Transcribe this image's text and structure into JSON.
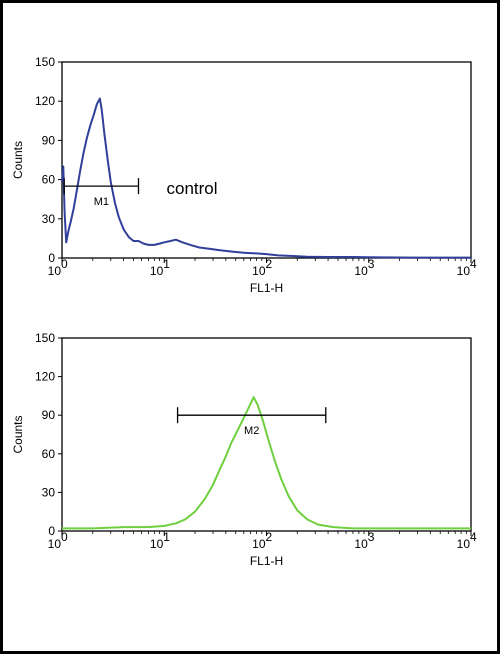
{
  "chart_data": [
    {
      "type": "line",
      "xscale": "log",
      "xlim": [
        1,
        10000
      ],
      "ylim": [
        0,
        150
      ],
      "xlabel": "FL1-H",
      "ylabel": "Counts",
      "x_ticks": [
        {
          "value": 1,
          "base": "10",
          "exp": "0"
        },
        {
          "value": 10,
          "base": "10",
          "exp": "1"
        },
        {
          "value": 100,
          "base": "10",
          "exp": "2"
        },
        {
          "value": 1000,
          "base": "10",
          "exp": "3"
        },
        {
          "value": 10000,
          "base": "10",
          "exp": "4"
        }
      ],
      "y_ticks": [
        0,
        30,
        60,
        90,
        120,
        150
      ],
      "annotation": "control",
      "gate": {
        "label": "M1",
        "x_start": 1.05,
        "x_end": 5.6,
        "y": 55
      },
      "series": [
        {
          "color": "#2f3f9a",
          "points": [
            [
              1.0,
              58
            ],
            [
              1.03,
              70
            ],
            [
              1.06,
              35
            ],
            [
              1.1,
              12
            ],
            [
              1.15,
              20
            ],
            [
              1.22,
              28
            ],
            [
              1.3,
              38
            ],
            [
              1.4,
              52
            ],
            [
              1.5,
              66
            ],
            [
              1.62,
              80
            ],
            [
              1.75,
              92
            ],
            [
              1.9,
              102
            ],
            [
              2.05,
              110
            ],
            [
              2.2,
              118
            ],
            [
              2.35,
              122
            ],
            [
              2.45,
              113
            ],
            [
              2.6,
              95
            ],
            [
              2.8,
              75
            ],
            [
              3.0,
              58
            ],
            [
              3.3,
              42
            ],
            [
              3.6,
              31
            ],
            [
              4.0,
              22
            ],
            [
              4.5,
              16
            ],
            [
              5.0,
              13
            ],
            [
              5.6,
              13
            ],
            [
              6.3,
              11
            ],
            [
              7.0,
              10
            ],
            [
              8.0,
              10
            ],
            [
              9.0,
              11
            ],
            [
              10.0,
              12
            ],
            [
              11.5,
              13
            ],
            [
              13.0,
              14
            ],
            [
              15.0,
              12
            ],
            [
              18.0,
              10
            ],
            [
              22.0,
              8
            ],
            [
              28.0,
              7
            ],
            [
              35.0,
              6
            ],
            [
              45.0,
              5
            ],
            [
              60.0,
              4
            ],
            [
              80.0,
              3.5
            ],
            [
              100.0,
              3
            ],
            [
              130.0,
              2
            ],
            [
              180.0,
              1.5
            ],
            [
              250.0,
              1
            ],
            [
              400.0,
              0.8
            ],
            [
              700.0,
              0.8
            ],
            [
              1000.0,
              0.5
            ],
            [
              3000.0,
              0.3
            ],
            [
              10000.0,
              0.3
            ]
          ]
        }
      ]
    },
    {
      "type": "line",
      "xscale": "log",
      "xlim": [
        1,
        10000
      ],
      "ylim": [
        0,
        150
      ],
      "xlabel": "FL1-H",
      "ylabel": "Counts",
      "x_ticks": [
        {
          "value": 1,
          "base": "10",
          "exp": "0"
        },
        {
          "value": 10,
          "base": "10",
          "exp": "1"
        },
        {
          "value": 100,
          "base": "10",
          "exp": "2"
        },
        {
          "value": 1000,
          "base": "10",
          "exp": "3"
        },
        {
          "value": 10000,
          "base": "10",
          "exp": "4"
        }
      ],
      "y_ticks": [
        0,
        30,
        60,
        90,
        120,
        150
      ],
      "gate": {
        "label": "M2",
        "x_start": 13.5,
        "x_end": 380,
        "y": 90
      },
      "series": [
        {
          "color": "#6fcf3f",
          "points": [
            [
              1.0,
              2
            ],
            [
              2.0,
              2
            ],
            [
              4.0,
              3
            ],
            [
              7.0,
              3
            ],
            [
              10.0,
              4
            ],
            [
              13.0,
              6
            ],
            [
              16.0,
              9
            ],
            [
              20.0,
              15
            ],
            [
              25.0,
              25
            ],
            [
              30.0,
              36
            ],
            [
              35.0,
              48
            ],
            [
              40.0,
              58
            ],
            [
              45.0,
              68
            ],
            [
              52.0,
              78
            ],
            [
              60.0,
              88
            ],
            [
              68.0,
              97
            ],
            [
              75.0,
              104
            ],
            [
              82.0,
              98
            ],
            [
              92.0,
              86
            ],
            [
              105.0,
              70
            ],
            [
              120.0,
              55
            ],
            [
              140.0,
              40
            ],
            [
              165.0,
              27
            ],
            [
              200.0,
              16
            ],
            [
              250.0,
              9
            ],
            [
              320.0,
              5
            ],
            [
              450.0,
              3
            ],
            [
              700.0,
              2
            ],
            [
              1500.0,
              2
            ],
            [
              10000.0,
              2
            ]
          ]
        }
      ]
    }
  ]
}
